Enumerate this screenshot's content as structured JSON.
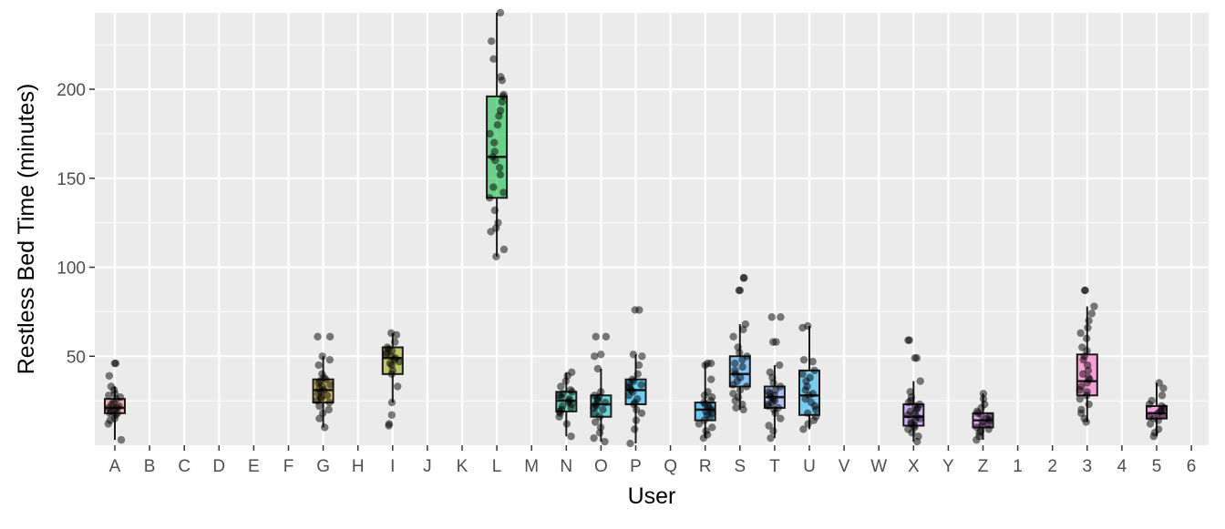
{
  "chart_data": {
    "type": "boxplot",
    "title": "",
    "xlabel": "User",
    "ylabel": "Restless Bed Time (minutes)",
    "ylim": [
      0,
      243
    ],
    "yticks": [
      50,
      100,
      150,
      200
    ],
    "grid": true,
    "legend": "none",
    "background_color": "#EBEBEB",
    "grid_color": "#FFFFFF",
    "categories": [
      "A",
      "B",
      "C",
      "D",
      "E",
      "F",
      "G",
      "H",
      "I",
      "J",
      "K",
      "L",
      "M",
      "N",
      "O",
      "P",
      "Q",
      "R",
      "S",
      "T",
      "U",
      "V",
      "W",
      "X",
      "Y",
      "Z",
      "1",
      "2",
      "3",
      "4",
      "5",
      "6"
    ],
    "groups": [
      {
        "category": "A",
        "color": "#F8766D",
        "q1": 18,
        "median": 21,
        "q3": 26,
        "whisker_low": 3,
        "whisker_high": 33,
        "points": [
          46,
          46,
          39,
          33,
          31,
          29,
          28,
          27,
          26,
          24,
          23,
          22,
          21,
          21,
          20,
          19,
          18,
          18,
          17,
          15,
          14,
          12,
          3
        ]
      },
      {
        "category": "G",
        "color": "#C49A00",
        "q1": 24,
        "median": 31,
        "q3": 37,
        "whisker_low": 10,
        "whisker_high": 50,
        "points": [
          61,
          61,
          50,
          48,
          45,
          40,
          38,
          37,
          36,
          35,
          34,
          33,
          32,
          31,
          30,
          29,
          28,
          27,
          26,
          25,
          24,
          22,
          20,
          18,
          15,
          10
        ]
      },
      {
        "category": "I",
        "color": "#99A800",
        "q1": 40,
        "median": 49,
        "q3": 55,
        "whisker_low": 24,
        "whisker_high": 63,
        "points": [
          63,
          62,
          58,
          55,
          54,
          53,
          52,
          51,
          50,
          49,
          48,
          47,
          46,
          45,
          42,
          40,
          33,
          24,
          17,
          12,
          11
        ]
      },
      {
        "category": "L",
        "color": "#00BA38",
        "q1": 139,
        "median": 162,
        "q3": 196,
        "whisker_low": 106,
        "whisker_high": 243,
        "points": [
          243,
          227,
          217,
          207,
          205,
          197,
          196,
          193,
          188,
          185,
          180,
          175,
          170,
          165,
          162,
          160,
          156,
          152,
          145,
          142,
          139,
          132,
          125,
          122,
          120,
          110,
          106
        ]
      },
      {
        "category": "N",
        "color": "#00C08B",
        "q1": 19,
        "median": 25,
        "q3": 30,
        "whisker_low": 5,
        "whisker_high": 41,
        "points": [
          41,
          39,
          36,
          33,
          31,
          30,
          29,
          28,
          27,
          26,
          25,
          24,
          23,
          22,
          21,
          20,
          19,
          18,
          16,
          12,
          5
        ]
      },
      {
        "category": "O",
        "color": "#00BFC4",
        "q1": 16,
        "median": 23,
        "q3": 28,
        "whisker_low": 2,
        "whisker_high": 43,
        "points": [
          61,
          61,
          51,
          50,
          43,
          30,
          28,
          27,
          26,
          25,
          24,
          23,
          22,
          21,
          20,
          18,
          16,
          13,
          10,
          7,
          4,
          2
        ]
      },
      {
        "category": "P",
        "color": "#00B4F0",
        "q1": 23,
        "median": 31,
        "q3": 37,
        "whisker_low": 1,
        "whisker_high": 51,
        "points": [
          76,
          76,
          51,
          50,
          45,
          40,
          37,
          36,
          35,
          34,
          33,
          32,
          31,
          30,
          28,
          26,
          24,
          23,
          20,
          18,
          14,
          9,
          1
        ]
      },
      {
        "category": "R",
        "color": "#00A9FF",
        "q1": 14,
        "median": 20,
        "q3": 24,
        "whisker_low": 4,
        "whisker_high": 46,
        "points": [
          46,
          46,
          45,
          37,
          30,
          28,
          27,
          25,
          24,
          23,
          22,
          21,
          20,
          19,
          18,
          17,
          16,
          14,
          12,
          10,
          8,
          6,
          4
        ]
      },
      {
        "category": "S",
        "color": "#35A2FF",
        "q1": 33,
        "median": 40,
        "q3": 50,
        "whisker_low": 20,
        "whisker_high": 68,
        "points": [
          94,
          94,
          87,
          87,
          68,
          65,
          61,
          55,
          52,
          50,
          48,
          46,
          44,
          42,
          40,
          38,
          36,
          34,
          33,
          31,
          29,
          27,
          25,
          23,
          21,
          20
        ]
      },
      {
        "category": "T",
        "color": "#7B9DFF",
        "q1": 21,
        "median": 27,
        "q3": 33,
        "whisker_low": 4,
        "whisker_high": 45,
        "points": [
          72,
          72,
          58,
          58,
          45,
          41,
          38,
          35,
          33,
          31,
          30,
          29,
          28,
          27,
          26,
          25,
          24,
          23,
          22,
          21,
          20,
          18,
          15,
          11,
          8,
          4
        ]
      },
      {
        "category": "U",
        "color": "#1FB0F5",
        "q1": 17,
        "median": 28,
        "q3": 42,
        "whisker_low": 9,
        "whisker_high": 67,
        "points": [
          67,
          66,
          48,
          47,
          42,
          40,
          38,
          36,
          33,
          31,
          29,
          28,
          26,
          24,
          22,
          20,
          18,
          16,
          14,
          12,
          9
        ]
      },
      {
        "category": "X",
        "color": "#B983FF",
        "q1": 11,
        "median": 16,
        "q3": 23,
        "whisker_low": 2,
        "whisker_high": 36,
        "points": [
          59,
          59,
          49,
          49,
          36,
          30,
          27,
          25,
          24,
          23,
          22,
          21,
          20,
          19,
          18,
          17,
          16,
          15,
          14,
          13,
          12,
          11,
          10,
          9,
          7,
          5,
          2
        ]
      },
      {
        "category": "Z",
        "color": "#E76BF3",
        "q1": 10,
        "median": 14,
        "q3": 18,
        "whisker_low": 3,
        "whisker_high": 29,
        "points": [
          29,
          26,
          23,
          21,
          19,
          18,
          17,
          16,
          15,
          14,
          13,
          12,
          11,
          10,
          9,
          8,
          7,
          5,
          3
        ]
      },
      {
        "category": "3",
        "color": "#FF61C3",
        "q1": 28,
        "median": 36,
        "q3": 51,
        "whisker_low": 13,
        "whisker_high": 78,
        "points": [
          87,
          87,
          78,
          74,
          70,
          66,
          63,
          60,
          55,
          53,
          50,
          48,
          45,
          42,
          40,
          38,
          37,
          35,
          33,
          31,
          30,
          28,
          26,
          23,
          20,
          18,
          15,
          13
        ]
      },
      {
        "category": "5",
        "color": "#FB61D7",
        "q1": 15,
        "median": 18,
        "q3": 22,
        "whisker_low": 5,
        "whisker_high": 35,
        "points": [
          35,
          32,
          28,
          25,
          23,
          22,
          21,
          20,
          19,
          18,
          17,
          16,
          15,
          14,
          12,
          9,
          7,
          5
        ]
      }
    ]
  }
}
